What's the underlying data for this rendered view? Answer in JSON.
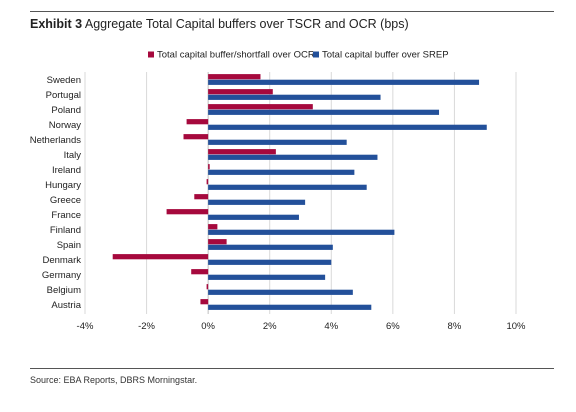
{
  "header": {
    "exhibit": "Exhibit 3",
    "title": "Aggregate Total Capital buffers over TSCR and OCR (bps)"
  },
  "footer": {
    "source": "Source: EBA Reports, DBRS Morningstar."
  },
  "chart_data": {
    "type": "bar",
    "orientation": "horizontal",
    "title": "Aggregate Total Capital buffers over TSCR and OCR (bps)",
    "categories": [
      "Sweden",
      "Portugal",
      "Poland",
      "Norway",
      "Netherlands",
      "Italy",
      "Ireland",
      "Hungary",
      "Greece",
      "France",
      "Finland",
      "Spain",
      "Denmark",
      "Germany",
      "Belgium",
      "Austria"
    ],
    "series": [
      {
        "name": "Total capital buffer/shortfall over OCR",
        "color": "#a6093d",
        "values": [
          1.7,
          2.1,
          3.4,
          -0.7,
          -0.8,
          2.2,
          0.05,
          -0.05,
          -0.45,
          -1.35,
          0.3,
          0.6,
          -3.1,
          -0.55,
          -0.05,
          -0.25
        ]
      },
      {
        "name": "Total capital buffer over SREP",
        "color": "#23509a",
        "values": [
          8.8,
          5.6,
          7.5,
          9.05,
          4.5,
          5.5,
          4.75,
          5.15,
          3.15,
          2.95,
          6.05,
          4.05,
          4.0,
          3.8,
          4.7,
          5.3
        ]
      }
    ],
    "xlim": [
      -4,
      10
    ],
    "xticks": [
      "-4%",
      "-2%",
      "0%",
      "2%",
      "4%",
      "6%",
      "8%",
      "10%"
    ],
    "xtick_values": [
      -4,
      -2,
      0,
      2,
      4,
      6,
      8,
      10
    ],
    "xlabel": "",
    "ylabel": "",
    "grid": "vertical",
    "legend_position": "top"
  }
}
